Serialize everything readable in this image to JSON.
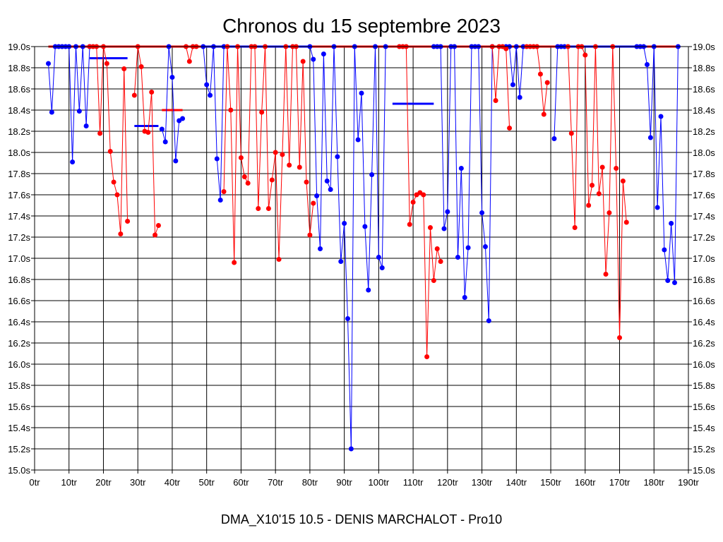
{
  "chart_data": {
    "type": "line",
    "title": "Chronos du 15 septembre 2023",
    "footer": "DMA_X10'15 10.5 - DENIS MARCHALOT - Pro10",
    "xlabel": "",
    "ylabel": "",
    "xlim": [
      0,
      190
    ],
    "ylim": [
      15.0,
      19.0
    ],
    "grid": true,
    "x_ticks": [
      {
        "v": 0,
        "label": "0tr"
      },
      {
        "v": 10,
        "label": "10tr"
      },
      {
        "v": 20,
        "label": "20tr"
      },
      {
        "v": 30,
        "label": "30tr"
      },
      {
        "v": 40,
        "label": "40tr"
      },
      {
        "v": 50,
        "label": "50tr"
      },
      {
        "v": 60,
        "label": "60tr"
      },
      {
        "v": 70,
        "label": "70tr"
      },
      {
        "v": 80,
        "label": "80tr"
      },
      {
        "v": 90,
        "label": "90tr"
      },
      {
        "v": 100,
        "label": "100tr"
      },
      {
        "v": 110,
        "label": "110tr"
      },
      {
        "v": 120,
        "label": "120tr"
      },
      {
        "v": 130,
        "label": "130tr"
      },
      {
        "v": 140,
        "label": "140tr"
      },
      {
        "v": 150,
        "label": "150tr"
      },
      {
        "v": 160,
        "label": "160tr"
      },
      {
        "v": 170,
        "label": "170tr"
      },
      {
        "v": 180,
        "label": "180tr"
      },
      {
        "v": 190,
        "label": "190tr"
      }
    ],
    "y_ticks": [
      {
        "v": 15.0,
        "label": "15.0s"
      },
      {
        "v": 15.2,
        "label": "15.2s"
      },
      {
        "v": 15.4,
        "label": "15.4s"
      },
      {
        "v": 15.6,
        "label": "15.6s"
      },
      {
        "v": 15.8,
        "label": "15.8s"
      },
      {
        "v": 16.0,
        "label": "16.0s"
      },
      {
        "v": 16.2,
        "label": "16.2s"
      },
      {
        "v": 16.4,
        "label": "16.4s"
      },
      {
        "v": 16.6,
        "label": "16.6s"
      },
      {
        "v": 16.8,
        "label": "16.8s"
      },
      {
        "v": 17.0,
        "label": "17.0s"
      },
      {
        "v": 17.2,
        "label": "17.2s"
      },
      {
        "v": 17.4,
        "label": "17.4s"
      },
      {
        "v": 17.6,
        "label": "17.6s"
      },
      {
        "v": 17.8,
        "label": "17.8s"
      },
      {
        "v": 18.0,
        "label": "18.0s"
      },
      {
        "v": 18.2,
        "label": "18.2s"
      },
      {
        "v": 18.4,
        "label": "18.4s"
      },
      {
        "v": 18.6,
        "label": "18.6s"
      },
      {
        "v": 18.8,
        "label": "18.8s"
      },
      {
        "v": 19.0,
        "label": "19.0s"
      }
    ],
    "series": [
      {
        "color": "#0000ff",
        "points": [
          [
            4,
            18.84
          ],
          [
            5,
            18.38
          ],
          [
            6,
            19
          ],
          [
            7,
            19
          ],
          [
            8,
            19
          ],
          [
            9,
            19
          ],
          [
            10,
            19
          ],
          [
            11,
            17.91
          ],
          [
            12,
            19
          ],
          [
            13,
            18.39
          ],
          [
            14,
            19
          ],
          [
            15,
            18.25
          ],
          [
            16,
            19
          ],
          [
            37,
            18.22
          ],
          [
            38,
            18.1
          ],
          [
            39,
            19
          ],
          [
            40,
            18.71
          ],
          [
            41,
            17.92
          ],
          [
            42,
            18.3
          ],
          [
            43,
            18.32
          ],
          [
            49,
            19
          ],
          [
            50,
            18.64
          ],
          [
            51,
            18.54
          ],
          [
            52,
            19
          ],
          [
            53,
            17.94
          ],
          [
            54,
            17.55
          ],
          [
            55,
            19
          ],
          [
            80,
            19
          ],
          [
            81,
            18.88
          ],
          [
            82,
            17.59
          ],
          [
            83,
            17.09
          ],
          [
            84,
            18.93
          ],
          [
            85,
            17.73
          ],
          [
            86,
            17.65
          ],
          [
            87,
            19
          ],
          [
            88,
            17.96
          ],
          [
            89,
            16.97
          ],
          [
            90,
            17.33
          ],
          [
            91,
            16.43
          ],
          [
            92,
            15.2
          ],
          [
            93,
            19
          ],
          [
            94,
            18.12
          ],
          [
            95,
            18.56
          ],
          [
            96,
            17.3
          ],
          [
            97,
            16.7
          ],
          [
            98,
            17.79
          ],
          [
            99,
            19
          ],
          [
            100,
            17.01
          ],
          [
            101,
            16.91
          ],
          [
            102,
            19
          ],
          [
            116,
            19
          ],
          [
            117,
            19
          ],
          [
            118,
            19
          ],
          [
            119,
            17.28
          ],
          [
            120,
            17.44
          ],
          [
            121,
            19
          ],
          [
            122,
            19
          ],
          [
            123,
            17.01
          ],
          [
            124,
            17.85
          ],
          [
            125,
            16.63
          ],
          [
            126,
            17.1
          ],
          [
            127,
            19
          ],
          [
            128,
            19
          ],
          [
            129,
            19
          ],
          [
            130,
            17.43
          ],
          [
            131,
            17.11
          ],
          [
            132,
            16.41
          ],
          [
            133,
            19
          ],
          [
            137,
            19
          ],
          [
            138,
            19
          ],
          [
            139,
            18.64
          ],
          [
            140,
            19
          ],
          [
            141,
            18.52
          ],
          [
            142,
            19
          ],
          [
            151,
            18.13
          ],
          [
            152,
            19
          ],
          [
            153,
            19
          ],
          [
            154,
            19
          ],
          [
            175,
            19
          ],
          [
            176,
            19
          ],
          [
            177,
            19
          ],
          [
            178,
            18.83
          ],
          [
            179,
            18.14
          ],
          [
            180,
            19
          ],
          [
            181,
            17.48
          ],
          [
            182,
            18.34
          ],
          [
            183,
            17.08
          ],
          [
            184,
            16.79
          ],
          [
            185,
            17.33
          ],
          [
            186,
            16.77
          ],
          [
            187,
            19
          ]
        ]
      },
      {
        "color": "#ff0000",
        "points": [
          [
            16,
            19
          ],
          [
            17,
            19
          ],
          [
            18,
            19
          ],
          [
            19,
            18.18
          ],
          [
            20,
            19
          ],
          [
            21,
            18.84
          ],
          [
            22,
            18.01
          ],
          [
            23,
            17.72
          ],
          [
            24,
            17.6
          ],
          [
            25,
            17.23
          ],
          [
            26,
            18.79
          ],
          [
            27,
            17.35
          ],
          [
            29,
            18.54
          ],
          [
            30,
            19
          ],
          [
            31,
            18.81
          ],
          [
            32,
            18.2
          ],
          [
            33,
            18.19
          ],
          [
            34,
            18.57
          ],
          [
            35,
            17.22
          ],
          [
            36,
            17.31
          ],
          [
            44,
            19
          ],
          [
            45,
            18.86
          ],
          [
            46,
            19
          ],
          [
            47,
            19
          ],
          [
            55,
            17.63
          ],
          [
            56,
            19
          ],
          [
            57,
            18.4
          ],
          [
            58,
            16.96
          ],
          [
            59,
            19
          ],
          [
            60,
            17.95
          ],
          [
            61,
            17.77
          ],
          [
            62,
            17.71
          ],
          [
            63,
            19
          ],
          [
            64,
            19
          ],
          [
            65,
            17.47
          ],
          [
            66,
            18.38
          ],
          [
            67,
            19
          ],
          [
            68,
            17.47
          ],
          [
            69,
            17.74
          ],
          [
            70,
            18
          ],
          [
            71,
            16.99
          ],
          [
            72,
            17.98
          ],
          [
            73,
            19
          ],
          [
            74,
            17.88
          ],
          [
            75,
            19
          ],
          [
            76,
            19
          ],
          [
            77,
            17.86
          ],
          [
            78,
            18.86
          ],
          [
            79,
            17.72
          ],
          [
            80,
            17.22
          ],
          [
            81,
            17.52
          ],
          [
            106,
            19
          ],
          [
            107,
            19
          ],
          [
            108,
            19
          ],
          [
            109,
            17.32
          ],
          [
            110,
            17.53
          ],
          [
            111,
            17.6
          ],
          [
            112,
            17.62
          ],
          [
            113,
            17.6
          ],
          [
            114,
            16.07
          ],
          [
            115,
            17.29
          ],
          [
            116,
            16.79
          ],
          [
            117,
            17.09
          ],
          [
            118,
            16.97
          ],
          [
            133,
            19
          ],
          [
            134,
            18.49
          ],
          [
            135,
            19
          ],
          [
            136,
            19
          ],
          [
            137,
            18.98
          ],
          [
            138,
            18.23
          ],
          [
            143,
            19
          ],
          [
            144,
            19
          ],
          [
            145,
            19
          ],
          [
            146,
            19
          ],
          [
            147,
            18.74
          ],
          [
            148,
            18.36
          ],
          [
            149,
            18.66
          ],
          [
            155,
            19
          ],
          [
            156,
            18.18
          ],
          [
            157,
            17.29
          ],
          [
            158,
            19
          ],
          [
            159,
            19
          ],
          [
            160,
            18.92
          ],
          [
            161,
            17.5
          ],
          [
            162,
            17.69
          ],
          [
            163,
            19
          ],
          [
            164,
            17.61
          ],
          [
            165,
            17.86
          ],
          [
            166,
            16.85
          ],
          [
            167,
            17.43
          ],
          [
            168,
            19
          ],
          [
            169,
            17.85
          ],
          [
            170,
            16.25
          ],
          [
            171,
            17.73
          ],
          [
            172,
            17.34
          ]
        ]
      }
    ],
    "top_lines": [
      {
        "from": 4,
        "to": 16,
        "color": "#ff0000"
      },
      {
        "from": 16,
        "to": 44,
        "color": "#ff0000"
      },
      {
        "from": 44,
        "to": 49,
        "color": "#ff0000"
      },
      {
        "from": 49,
        "to": 80,
        "color": "#0000ff"
      },
      {
        "from": 80,
        "to": 118,
        "color": "#ff0000"
      },
      {
        "from": 118,
        "to": 152,
        "color": "#ff0000"
      },
      {
        "from": 152,
        "to": 178,
        "color": "#0000ff"
      },
      {
        "from": 178,
        "to": 187,
        "color": "#ff0000"
      }
    ],
    "average_segments": [
      {
        "from": 16,
        "to": 27,
        "y": 18.89,
        "color": "#0000ff"
      },
      {
        "from": 29,
        "to": 36,
        "y": 18.25,
        "color": "#0000ff"
      },
      {
        "from": 37,
        "to": 43,
        "y": 18.4,
        "color": "#ff0000"
      },
      {
        "from": 104,
        "to": 116,
        "y": 18.46,
        "color": "#0000ff"
      }
    ]
  }
}
